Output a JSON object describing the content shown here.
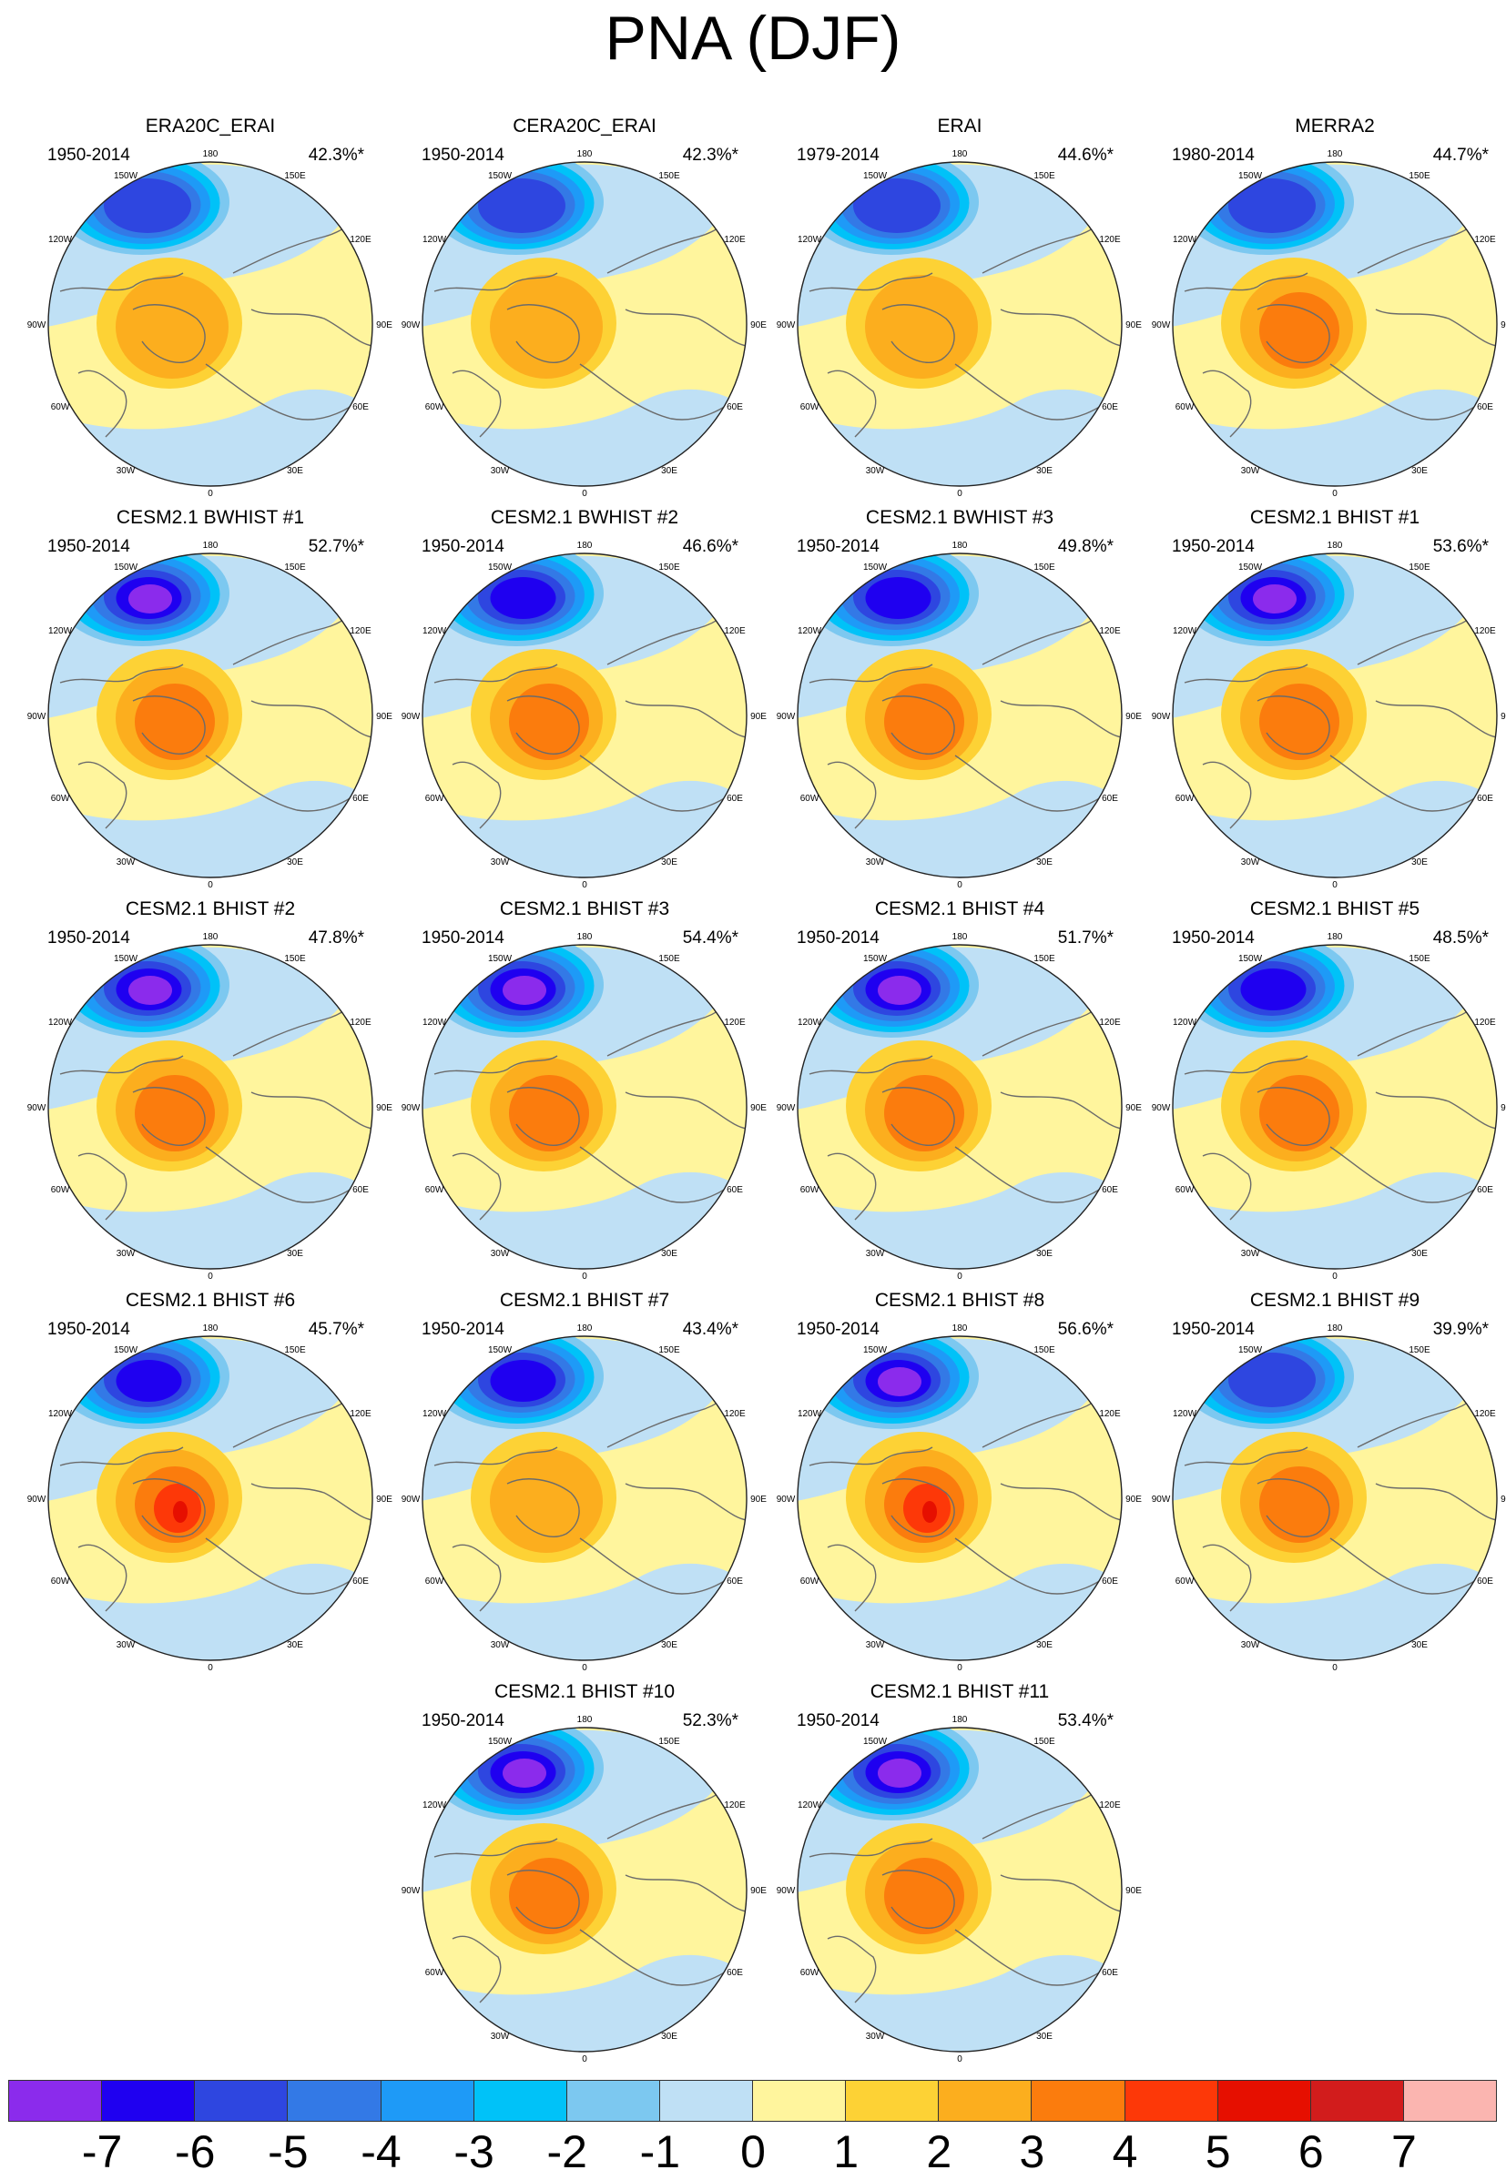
{
  "title": "PNA (DJF)",
  "map_labels": {
    "lon_180": "180",
    "lon_150w": "150W",
    "lon_150e": "150E",
    "lon_120w": "120W",
    "lon_120e": "120E",
    "lon_90w": "90W",
    "lon_90e": "90E",
    "lon_60w": "60W",
    "lon_60e": "60E",
    "lon_30w": "30W",
    "lon_30e": "30E",
    "lon_0": "0"
  },
  "colors": {
    "background_neg": "#bfe0f5",
    "background_pos": "#fff59d",
    "coast": "#6b6b6b"
  },
  "panels": [
    {
      "title": "ERA20C_ERAI",
      "years": "1950-2014",
      "pct": "42.3%*",
      "neg": 5,
      "pos": 2
    },
    {
      "title": "CERA20C_ERAI",
      "years": "1950-2014",
      "pct": "42.3%*",
      "neg": 5,
      "pos": 2
    },
    {
      "title": "ERAI",
      "years": "1979-2014",
      "pct": "44.6%*",
      "neg": 5,
      "pos": 2
    },
    {
      "title": "MERRA2",
      "years": "1980-2014",
      "pct": "44.7%*",
      "neg": 5,
      "pos": 3
    },
    {
      "title": "CESM2.1 BWHIST #1",
      "years": "1950-2014",
      "pct": "52.7%*",
      "neg": 7,
      "pos": 3
    },
    {
      "title": "CESM2.1 BWHIST #2",
      "years": "1950-2014",
      "pct": "46.6%*",
      "neg": 6,
      "pos": 3
    },
    {
      "title": "CESM2.1 BWHIST #3",
      "years": "1950-2014",
      "pct": "49.8%*",
      "neg": 6,
      "pos": 3
    },
    {
      "title": "CESM2.1 BHIST #1",
      "years": "1950-2014",
      "pct": "53.6%*",
      "neg": 7,
      "pos": 3
    },
    {
      "title": "CESM2.1 BHIST #2",
      "years": "1950-2014",
      "pct": "47.8%*",
      "neg": 7,
      "pos": 3
    },
    {
      "title": "CESM2.1 BHIST #3",
      "years": "1950-2014",
      "pct": "54.4%*",
      "neg": 7,
      "pos": 3
    },
    {
      "title": "CESM2.1 BHIST #4",
      "years": "1950-2014",
      "pct": "51.7%*",
      "neg": 7,
      "pos": 3
    },
    {
      "title": "CESM2.1 BHIST #5",
      "years": "1950-2014",
      "pct": "48.5%*",
      "neg": 6,
      "pos": 3
    },
    {
      "title": "CESM2.1 BHIST #6",
      "years": "1950-2014",
      "pct": "45.7%*",
      "neg": 6,
      "pos": 5
    },
    {
      "title": "CESM2.1 BHIST #7",
      "years": "1950-2014",
      "pct": "43.4%*",
      "neg": 6,
      "pos": 2
    },
    {
      "title": "CESM2.1 BHIST #8",
      "years": "1950-2014",
      "pct": "56.6%*",
      "neg": 7,
      "pos": 5
    },
    {
      "title": "CESM2.1 BHIST #9",
      "years": "1950-2014",
      "pct": "39.9%*",
      "neg": 5,
      "pos": 3
    },
    {
      "title": "CESM2.1 BHIST #10",
      "years": "1950-2014",
      "pct": "52.3%*",
      "neg": 7,
      "pos": 3
    },
    {
      "title": "CESM2.1 BHIST #11",
      "years": "1950-2014",
      "pct": "53.4%*",
      "neg": 7,
      "pos": 3
    }
  ],
  "colorbar": {
    "colors": [
      "#8b2bec",
      "#1f00f0",
      "#2e46e0",
      "#3379e6",
      "#1e9af7",
      "#00c2f8",
      "#7cc8f0",
      "#bfe0f5",
      "#fff59d",
      "#fdd235",
      "#fcae1e",
      "#fb7c0d",
      "#fd3808",
      "#e60f00",
      "#d21c1c",
      "#fbb5b0"
    ],
    "labels": [
      "-7",
      "-6",
      "-5",
      "-4",
      "-3",
      "-2",
      "-1",
      "0",
      "1",
      "2",
      "3",
      "4",
      "5",
      "6",
      "7"
    ]
  }
}
